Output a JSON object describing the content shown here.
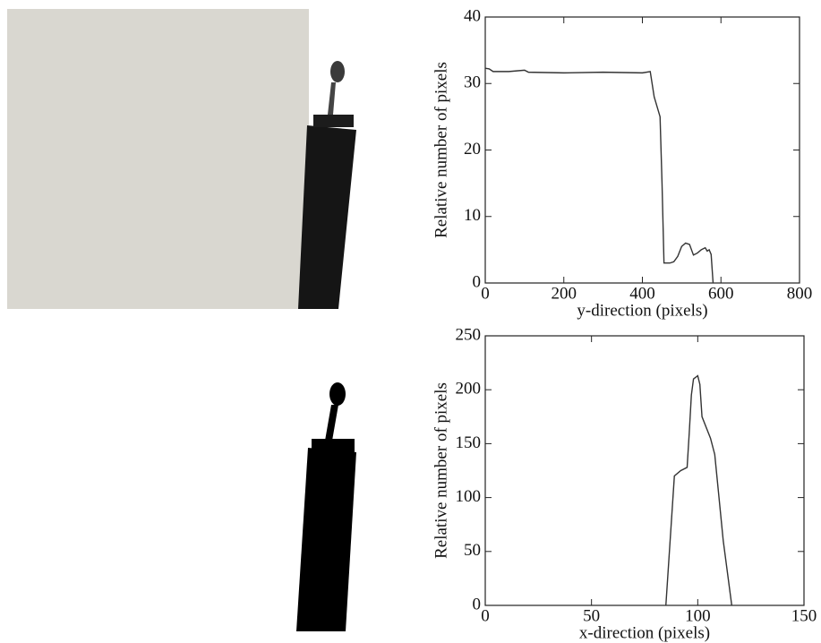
{
  "chart_data": [
    {
      "type": "line",
      "xlabel": "y-direction (pixels)",
      "ylabel": "Relative number of pixels",
      "x": [
        0,
        10,
        20,
        60,
        100,
        110,
        200,
        300,
        400,
        420,
        430,
        440,
        445,
        450,
        455,
        470,
        480,
        490,
        500,
        510,
        520,
        530,
        540,
        550,
        560,
        565,
        570,
        575,
        580
      ],
      "values": [
        32.3,
        32.2,
        31.8,
        31.8,
        32.0,
        31.7,
        31.6,
        31.7,
        31.6,
        31.8,
        28,
        26,
        25,
        15,
        3,
        3,
        3.2,
        4,
        5.5,
        6,
        5.8,
        4.2,
        4.5,
        5,
        5.3,
        4.8,
        5,
        4.3,
        0
      ],
      "color": "#333333",
      "xlim": [
        0,
        800
      ],
      "xticks": [
        0,
        200,
        400,
        600,
        800
      ],
      "ylim": [
        0,
        40
      ],
      "yticks": [
        0,
        10,
        20,
        30,
        40
      ]
    },
    {
      "type": "line",
      "xlabel": "x-direction (pixels)",
      "ylabel": "Relative number of pixels",
      "x": [
        85,
        87,
        89,
        92,
        95,
        96,
        97,
        98,
        100,
        101,
        102,
        104,
        106,
        108,
        110,
        112,
        114,
        116
      ],
      "values": [
        0,
        60,
        120,
        125,
        128,
        160,
        195,
        210,
        213,
        205,
        175,
        165,
        155,
        140,
        100,
        60,
        30,
        0
      ],
      "color": "#333333",
      "xlim": [
        0,
        150
      ],
      "xticks": [
        0,
        50,
        100,
        150
      ],
      "ylim": [
        0,
        250
      ],
      "yticks": [
        0,
        50,
        100,
        150,
        200,
        250
      ]
    }
  ]
}
